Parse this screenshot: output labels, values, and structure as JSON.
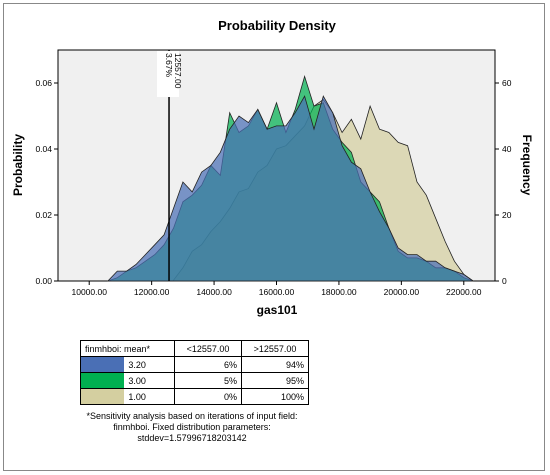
{
  "chart_data": {
    "type": "area",
    "title": "Probability Density",
    "xlabel": "gas101",
    "ylabel": "Probability",
    "y2label": "Frequency",
    "xlim": [
      9000,
      23000
    ],
    "ylim": [
      0,
      0.07
    ],
    "y2lim": [
      0,
      70
    ],
    "x_ticks": [
      10000,
      12000,
      14000,
      16000,
      18000,
      20000,
      22000
    ],
    "x_tick_labels": [
      "10000.00",
      "12000.00",
      "14000.00",
      "16000.00",
      "18000.00",
      "20000.00",
      "22000.00"
    ],
    "y_ticks": [
      0,
      0.02,
      0.04,
      0.06
    ],
    "y_tick_labels": [
      "0.00",
      "0.02",
      "0.04",
      "0.06"
    ],
    "y2_ticks": [
      0,
      20,
      40,
      60
    ],
    "y2_tick_labels": [
      "0",
      "20",
      "40",
      "60"
    ],
    "marker": {
      "x": 12557,
      "label_value": "12557.00",
      "label_pct": "3.67%"
    },
    "series": [
      {
        "name": "1.00",
        "color": "#d4cfa0",
        "x": [
          12680,
          13000,
          13300,
          13600,
          13900,
          14200,
          14500,
          14800,
          15100,
          15400,
          15700,
          16000,
          16300,
          16600,
          16900,
          17200,
          17500,
          17800,
          18100,
          18400,
          18700,
          19000,
          19300,
          19600,
          19900,
          20200,
          20500,
          20800,
          21100,
          21400,
          21700,
          22000,
          22300
        ],
        "values": [
          0.0,
          0.004,
          0.009,
          0.011,
          0.015,
          0.018,
          0.022,
          0.027,
          0.028,
          0.033,
          0.035,
          0.04,
          0.041,
          0.044,
          0.047,
          0.053,
          0.055,
          0.051,
          0.045,
          0.049,
          0.043,
          0.053,
          0.046,
          0.045,
          0.042,
          0.041,
          0.03,
          0.026,
          0.019,
          0.012,
          0.006,
          0.002,
          0.0
        ]
      },
      {
        "name": "3.00",
        "color": "#00b050",
        "x": [
          10600,
          10900,
          11200,
          11500,
          11800,
          12100,
          12400,
          12700,
          13000,
          13300,
          13600,
          13900,
          14200,
          14500,
          14800,
          15100,
          15400,
          15700,
          16000,
          16300,
          16600,
          16900,
          17200,
          17500,
          17800,
          18100,
          18400,
          18700,
          19000,
          19300,
          19600,
          19900,
          20200,
          20500,
          20800,
          21100,
          21400,
          21700,
          22000,
          22300
        ],
        "values": [
          0.0,
          0.001,
          0.003,
          0.004,
          0.006,
          0.008,
          0.011,
          0.016,
          0.024,
          0.026,
          0.029,
          0.035,
          0.032,
          0.051,
          0.045,
          0.047,
          0.052,
          0.046,
          0.054,
          0.045,
          0.052,
          0.062,
          0.053,
          0.054,
          0.046,
          0.042,
          0.039,
          0.03,
          0.027,
          0.024,
          0.016,
          0.009,
          0.007,
          0.007,
          0.006,
          0.004,
          0.004,
          0.003,
          0.001,
          0.0
        ]
      },
      {
        "name": "3.20",
        "color": "#4a6fb5",
        "x": [
          10600,
          10900,
          11200,
          11500,
          11800,
          12100,
          12400,
          12700,
          13000,
          13300,
          13600,
          13900,
          14200,
          14500,
          14800,
          15100,
          15400,
          15700,
          16000,
          16300,
          16600,
          16900,
          17200,
          17500,
          17800,
          18100,
          18400,
          18700,
          19000,
          19300,
          19600,
          19900,
          20200,
          20500,
          20800,
          21100,
          21400,
          21700,
          22000,
          22300
        ],
        "values": [
          0.0,
          0.003,
          0.003,
          0.005,
          0.008,
          0.011,
          0.014,
          0.022,
          0.03,
          0.027,
          0.033,
          0.035,
          0.039,
          0.046,
          0.05,
          0.048,
          0.052,
          0.046,
          0.047,
          0.047,
          0.051,
          0.056,
          0.046,
          0.056,
          0.051,
          0.041,
          0.036,
          0.034,
          0.027,
          0.021,
          0.016,
          0.01,
          0.008,
          0.008,
          0.006,
          0.006,
          0.004,
          0.003,
          0.002,
          0.0
        ]
      }
    ]
  },
  "legend": {
    "header": [
      "finmhboi: mean*",
      "<12557.00",
      ">12557.00"
    ],
    "rows": [
      {
        "label": "3.20",
        "color": "#4a6fb5",
        "below": "6%",
        "above": "94%"
      },
      {
        "label": "3.00",
        "color": "#00b050",
        "below": "5%",
        "above": "95%"
      },
      {
        "label": "1.00",
        "color": "#d4cfa0",
        "below": "0%",
        "above": "100%"
      }
    ]
  },
  "note": "*Sensitivity analysis based on iterations of input field: finmhboi. Fixed distribution parameters: stddev=1.57996718203142"
}
